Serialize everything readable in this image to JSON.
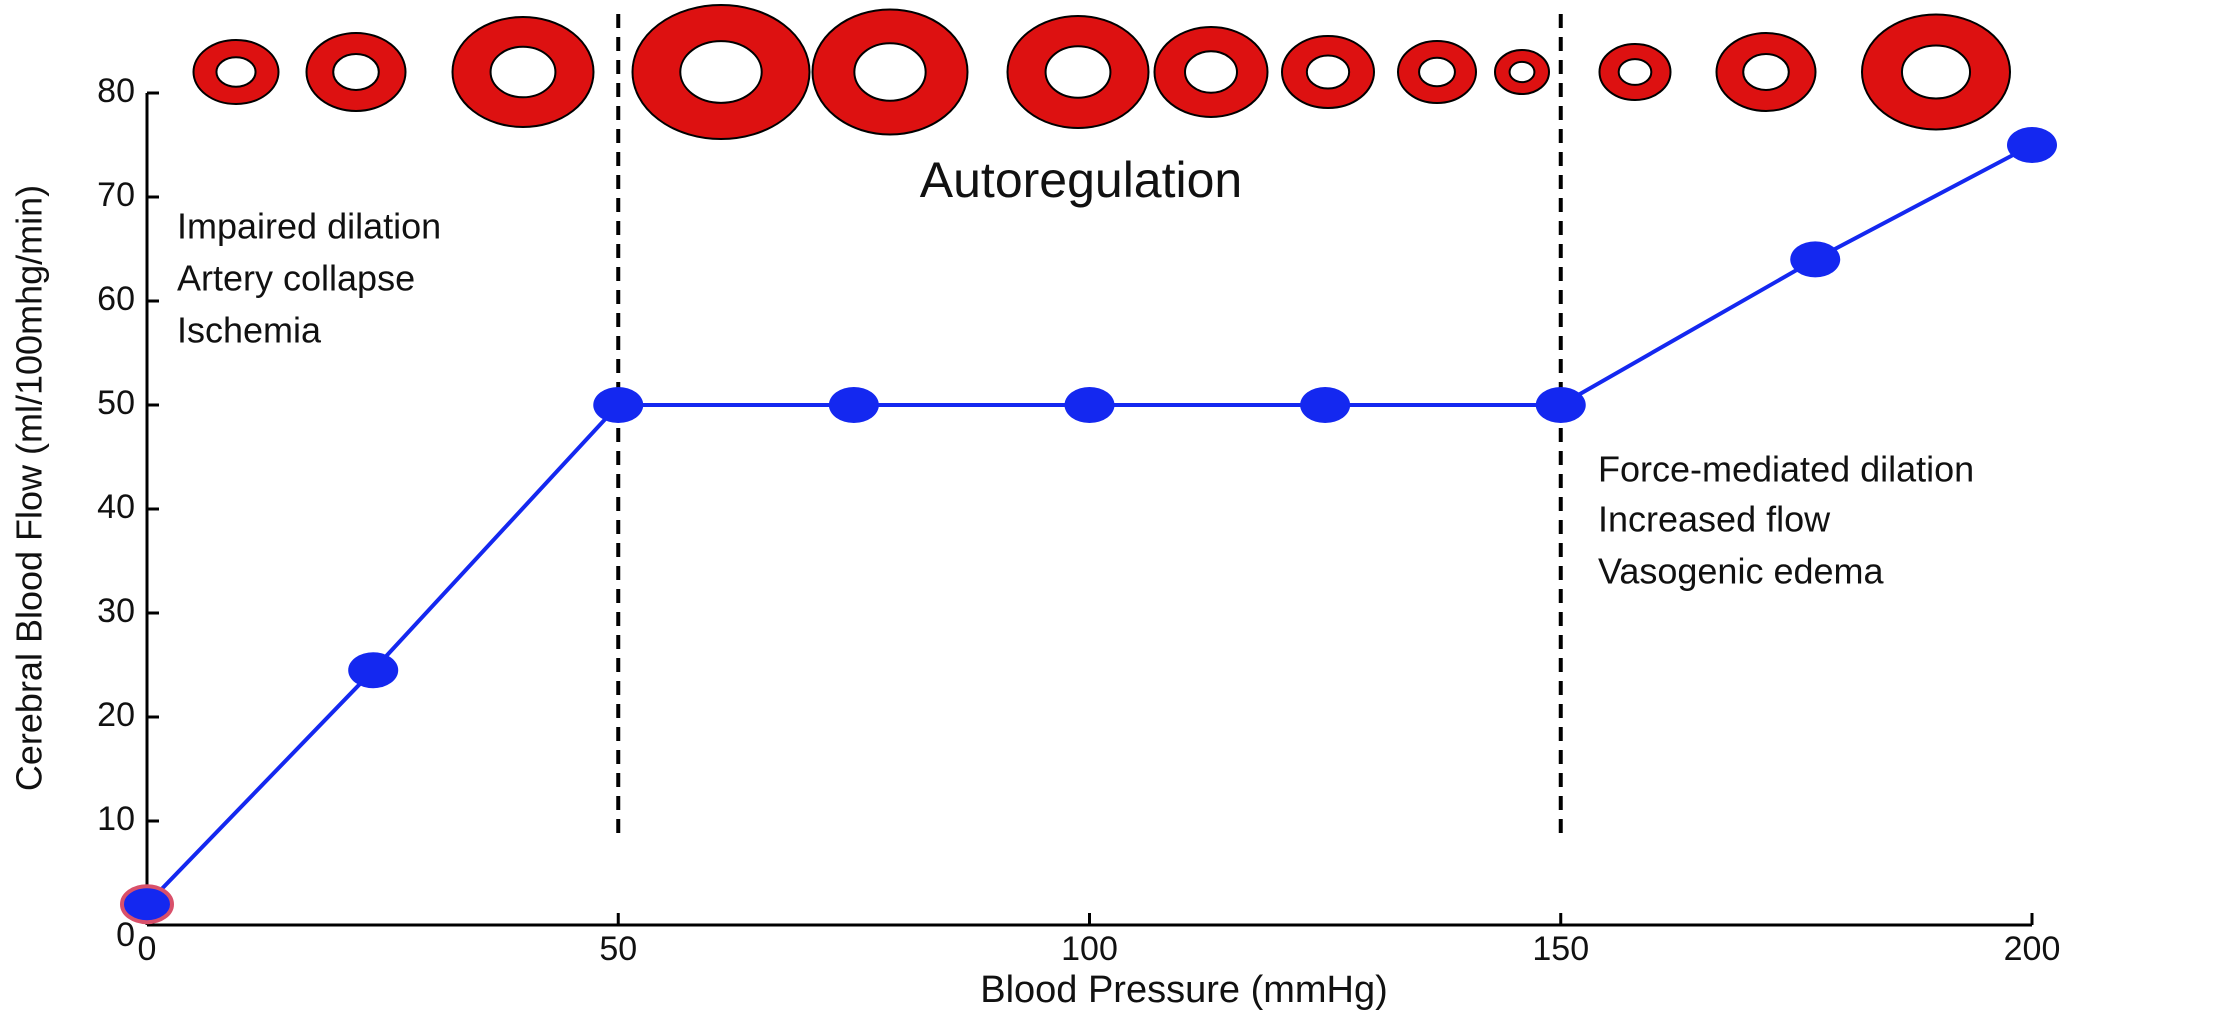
{
  "chart_data": {
    "type": "line",
    "xlabel": "Blood Pressure (mmHg)",
    "ylabel": "Cerebral Blood Flow (ml/100mhg/min)",
    "annotations": [
      "Autoregulation",
      "Impaired dilation",
      "Artery collapse",
      "Ischemia",
      "Force-mediated dilation",
      "Increased flow",
      "Vasogenic edema"
    ],
    "x": [
      0,
      24,
      50,
      75,
      100,
      125,
      150,
      177,
      200
    ],
    "series": [
      {
        "color": "#1428f0",
        "values": [
          2,
          24.5,
          50,
          50,
          50,
          50,
          50,
          64,
          75
        ]
      }
    ],
    "first_marker_edge": "#d9506a",
    "vlines": [
      50,
      150
    ],
    "xlim": [
      0,
      200
    ],
    "xticks": [
      0,
      50,
      100,
      150,
      200
    ],
    "ylim": [
      0,
      80
    ],
    "yticks": [
      0,
      10,
      20,
      30,
      40,
      50,
      60,
      70,
      80
    ]
  }
}
